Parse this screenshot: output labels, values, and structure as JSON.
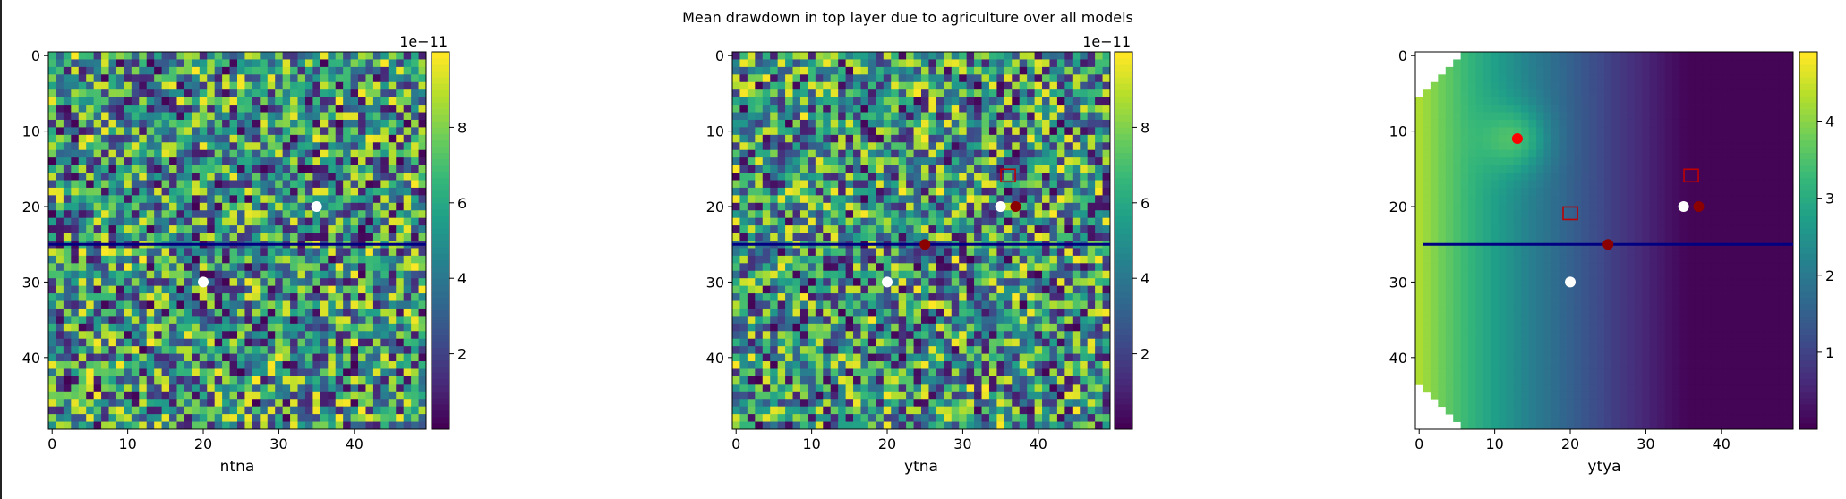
{
  "suptitle": "Mean drawdown in top layer due to agriculture over all models",
  "colors": {
    "open_well": "#ffffff",
    "source_well": "#8b0000",
    "hot_source": "#ff0000",
    "obs_square": "#c00000",
    "river_line": "#000080"
  },
  "chart_data": [
    {
      "type": "heatmap",
      "field": "random-noise",
      "xlabel": "ntna",
      "xticks": [
        0,
        10,
        20,
        30,
        40
      ],
      "yticks": [
        0,
        10,
        20,
        30,
        40
      ],
      "xlim": [
        -0.5,
        49.5
      ],
      "ylim": [
        49.5,
        -0.5
      ],
      "grid": false,
      "colormap": "viridis",
      "colorbar": {
        "ticks": [
          2,
          4,
          6,
          8
        ],
        "range": [
          0,
          10
        ],
        "offset_label": "1e−11"
      },
      "river_row": 25,
      "open_wells": [
        [
          35,
          20
        ],
        [
          20,
          30
        ]
      ],
      "source_wells": [],
      "hot_sources": [],
      "obs_squares": []
    },
    {
      "type": "heatmap",
      "field": "random-noise",
      "xlabel": "ytna",
      "xticks": [
        0,
        10,
        20,
        30,
        40
      ],
      "yticks": [
        0,
        10,
        20,
        30,
        40
      ],
      "xlim": [
        -0.5,
        49.5
      ],
      "ylim": [
        49.5,
        -0.5
      ],
      "grid": false,
      "colormap": "viridis",
      "colorbar": {
        "ticks": [
          2,
          4,
          6,
          8
        ],
        "range": [
          0,
          10
        ],
        "offset_label": "1e−11"
      },
      "river_row": 25,
      "open_wells": [
        [
          35,
          20
        ],
        [
          20,
          30
        ]
      ],
      "source_wells": [
        [
          37,
          20
        ],
        [
          25,
          25
        ]
      ],
      "hot_sources": [],
      "obs_squares": [
        [
          36,
          16
        ]
      ]
    },
    {
      "type": "heatmap",
      "field": "smooth-drawdown",
      "xlabel": "ytya",
      "xticks": [
        0,
        10,
        20,
        30,
        40
      ],
      "yticks": [
        0,
        10,
        20,
        30,
        40
      ],
      "xlim": [
        -0.5,
        49.5
      ],
      "ylim": [
        49.5,
        -0.5
      ],
      "grid": false,
      "colormap": "viridis",
      "colorbar": {
        "ticks": [
          1,
          2,
          3,
          4
        ],
        "range": [
          0,
          4.9
        ],
        "offset_label": ""
      },
      "river_row": 25,
      "open_wells": [
        [
          35,
          20
        ],
        [
          20,
          30
        ]
      ],
      "source_wells": [
        [
          37,
          20
        ],
        [
          25,
          25
        ]
      ],
      "hot_sources": [
        [
          13,
          11
        ]
      ],
      "obs_squares": [
        [
          36,
          16
        ],
        [
          20,
          21
        ]
      ]
    }
  ]
}
